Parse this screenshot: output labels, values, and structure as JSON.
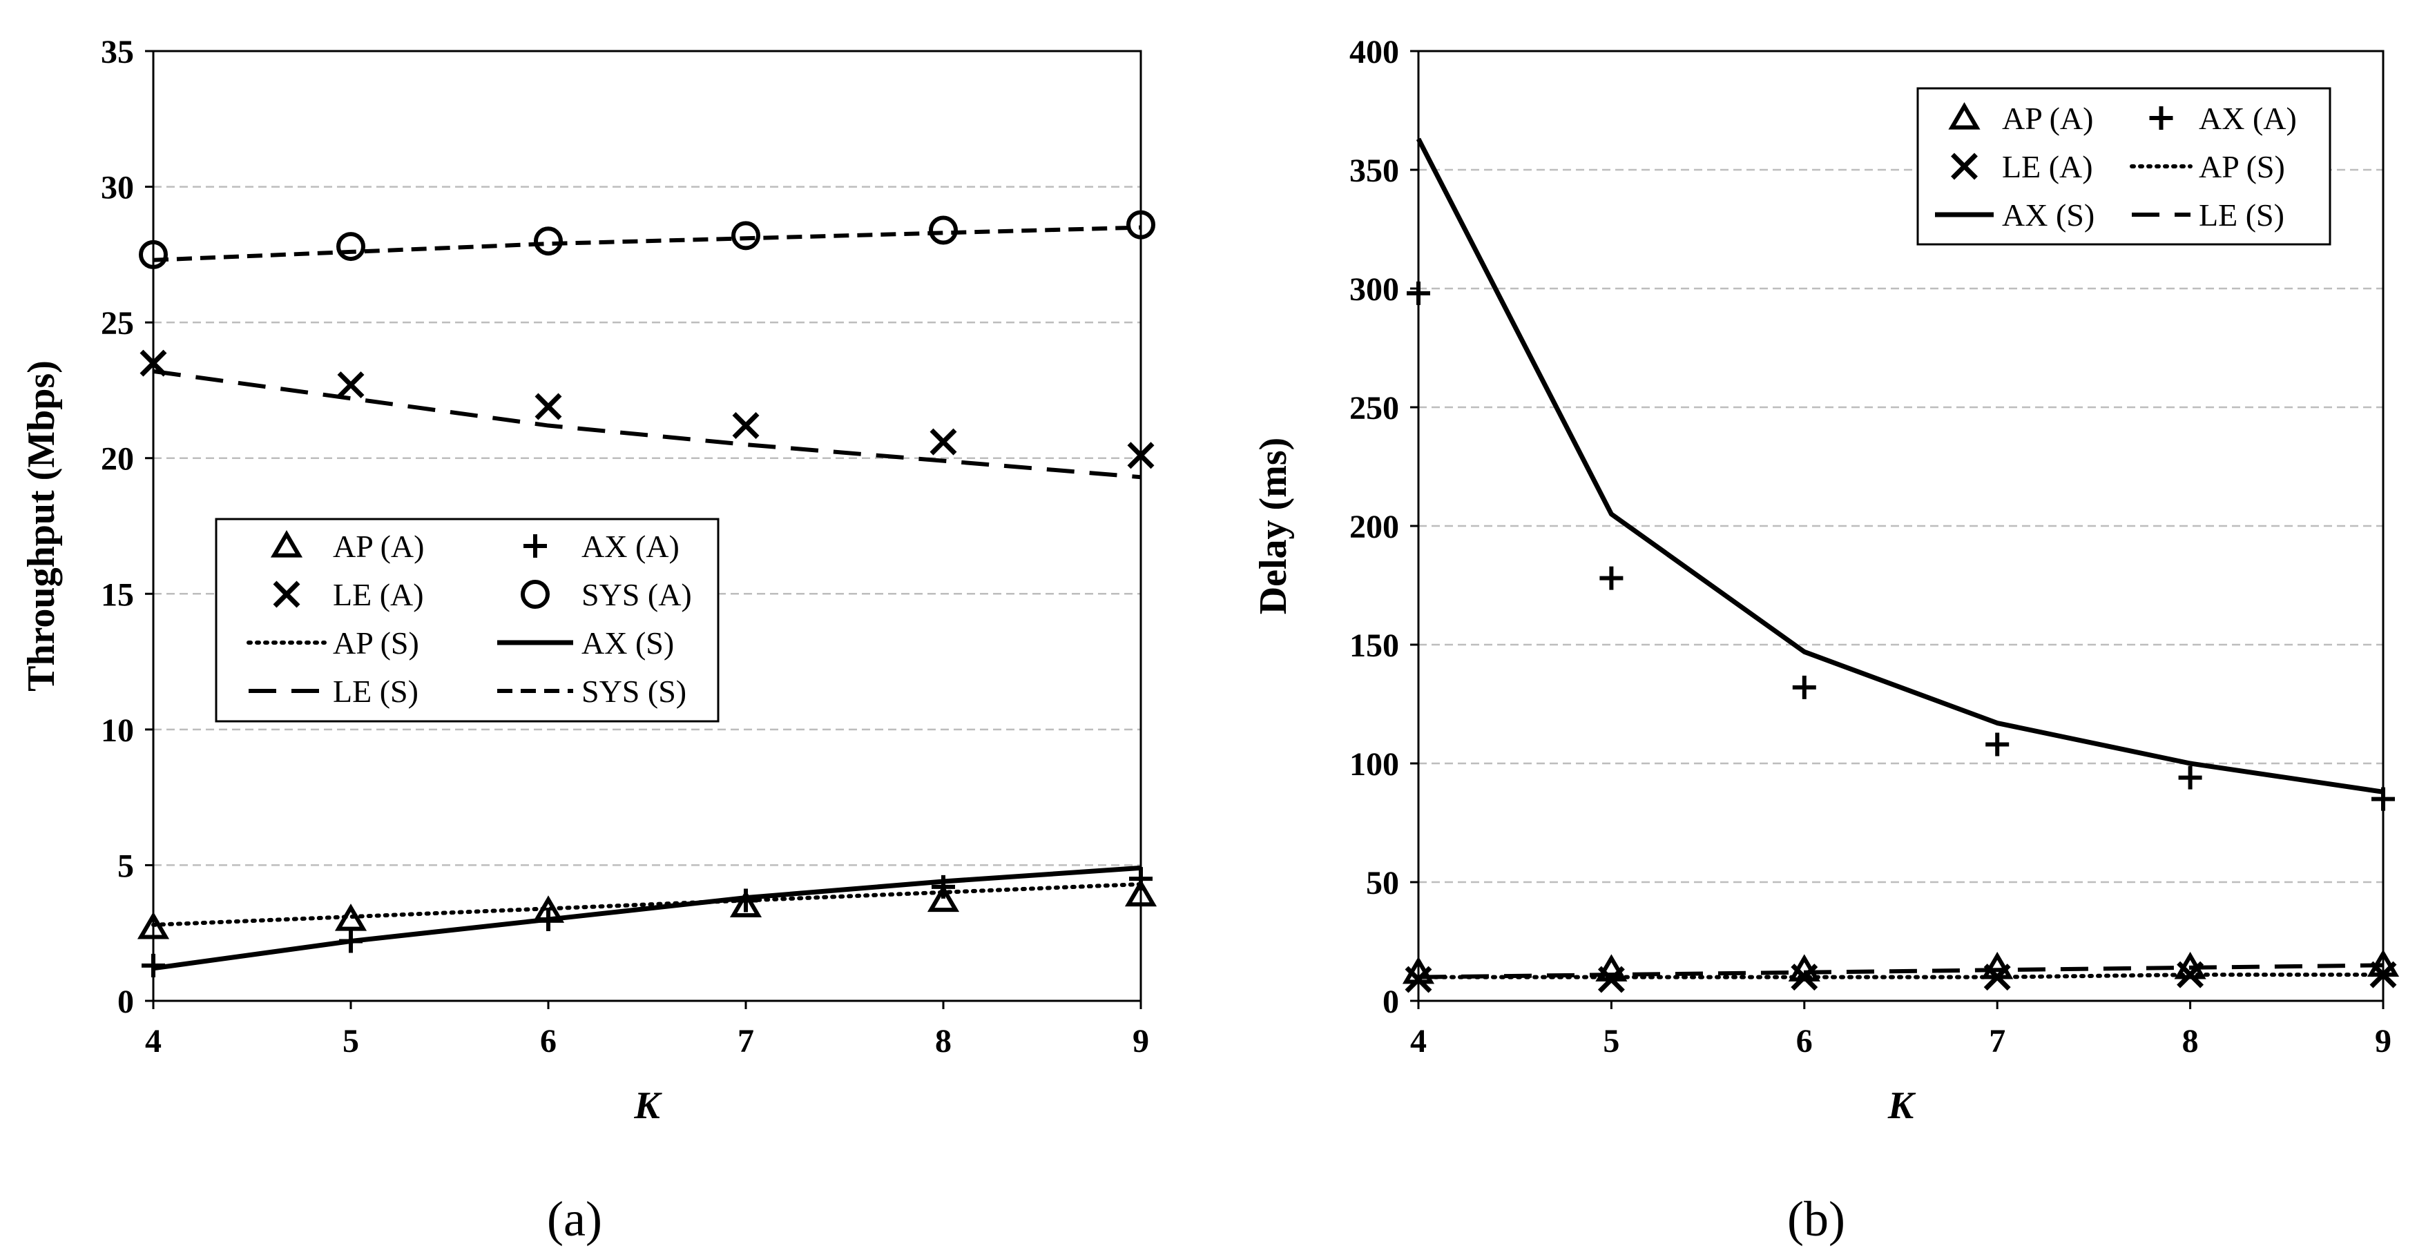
{
  "chart_data": [
    {
      "id": "a",
      "type": "line",
      "caption": "(a)",
      "xlabel": "K",
      "ylabel": "Throughput (Mbps)",
      "xlim": [
        4,
        9
      ],
      "ylim": [
        0,
        35
      ],
      "x_ticks": [
        4,
        5,
        6,
        7,
        8,
        9
      ],
      "y_ticks": [
        0,
        5,
        10,
        15,
        20,
        25,
        30,
        35
      ],
      "grid": "horizontal-dashed",
      "legend": "center-left",
      "x": [
        4,
        5,
        6,
        7,
        8,
        9
      ],
      "series": [
        {
          "name": "AP (A)",
          "kind": "markers",
          "marker": "triangle",
          "values": [
            2.7,
            3.0,
            3.3,
            3.5,
            3.7,
            3.9
          ]
        },
        {
          "name": "AX (A)",
          "kind": "markers",
          "marker": "plus",
          "values": [
            1.3,
            2.2,
            3.0,
            3.7,
            4.2,
            4.5
          ]
        },
        {
          "name": "LE (A)",
          "kind": "markers",
          "marker": "x",
          "values": [
            23.5,
            22.7,
            21.9,
            21.2,
            20.6,
            20.1
          ]
        },
        {
          "name": "SYS (A)",
          "kind": "markers",
          "marker": "circle",
          "values": [
            27.5,
            27.8,
            28.0,
            28.2,
            28.4,
            28.6
          ]
        },
        {
          "name": "AP (S)",
          "kind": "line",
          "style": "dotted",
          "values": [
            2.8,
            3.1,
            3.4,
            3.7,
            4.0,
            4.3
          ]
        },
        {
          "name": "AX (S)",
          "kind": "line",
          "style": "solid",
          "values": [
            1.2,
            2.2,
            3.0,
            3.8,
            4.4,
            4.9
          ]
        },
        {
          "name": "LE (S)",
          "kind": "line",
          "style": "dashed",
          "values": [
            23.2,
            22.2,
            21.2,
            20.5,
            19.9,
            19.3
          ]
        },
        {
          "name": "SYS (S)",
          "kind": "line",
          "style": "short-dashed",
          "values": [
            27.3,
            27.6,
            27.9,
            28.1,
            28.3,
            28.5
          ]
        }
      ]
    },
    {
      "id": "b",
      "type": "line",
      "caption": "(b)",
      "xlabel": "K",
      "ylabel": "Delay (ms)",
      "xlim": [
        4,
        9
      ],
      "ylim": [
        0,
        400
      ],
      "x_ticks": [
        4,
        5,
        6,
        7,
        8,
        9
      ],
      "y_ticks": [
        0,
        50,
        100,
        150,
        200,
        250,
        300,
        350,
        400
      ],
      "grid": "horizontal-dashed",
      "legend": "top-right",
      "x": [
        4,
        5,
        6,
        7,
        8,
        9
      ],
      "series": [
        {
          "name": "AP (A)",
          "kind": "markers",
          "marker": "triangle",
          "values": [
            12,
            13,
            13,
            14,
            14,
            15
          ]
        },
        {
          "name": "AX (A)",
          "kind": "markers",
          "marker": "plus",
          "values": [
            298,
            178,
            132,
            108,
            94,
            85
          ]
        },
        {
          "name": "LE (A)",
          "kind": "markers",
          "marker": "x",
          "values": [
            9,
            9,
            10,
            10,
            11,
            11
          ]
        },
        {
          "name": "AP (S)",
          "kind": "line",
          "style": "dotted",
          "values": [
            10,
            10,
            10,
            10,
            11,
            11
          ]
        },
        {
          "name": "AX (S)",
          "kind": "line",
          "style": "solid",
          "values": [
            363,
            205,
            147,
            117,
            100,
            88
          ]
        },
        {
          "name": "LE (S)",
          "kind": "line",
          "style": "dashed",
          "values": [
            10,
            11,
            12,
            13,
            14,
            15
          ]
        }
      ]
    }
  ]
}
